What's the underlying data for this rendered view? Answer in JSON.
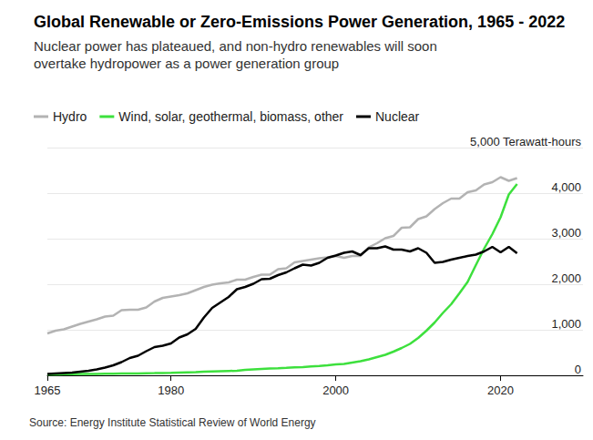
{
  "chart_data": {
    "type": "line",
    "title": "Global Renewable or Zero-Emissions Power Generation, 1965 - 2022",
    "subtitle": "Nuclear power has plateaued, and non-hydro renewables will soon overtake hydropower as a power generation group",
    "source": "Source: Energy Institute Statistical Review of World Energy",
    "x": [
      1965,
      1966,
      1967,
      1968,
      1969,
      1970,
      1971,
      1972,
      1973,
      1974,
      1975,
      1976,
      1977,
      1978,
      1979,
      1980,
      1981,
      1982,
      1983,
      1984,
      1985,
      1986,
      1987,
      1988,
      1989,
      1990,
      1991,
      1992,
      1993,
      1994,
      1995,
      1996,
      1997,
      1998,
      1999,
      2000,
      2001,
      2002,
      2003,
      2004,
      2005,
      2006,
      2007,
      2008,
      2009,
      2010,
      2011,
      2012,
      2013,
      2014,
      2015,
      2016,
      2017,
      2018,
      2019,
      2020,
      2021,
      2022
    ],
    "series": [
      {
        "name": "Hydro",
        "color": "#b3b3b3",
        "values": [
          920,
          980,
          1010,
          1070,
          1130,
          1180,
          1230,
          1290,
          1310,
          1430,
          1440,
          1440,
          1490,
          1620,
          1700,
          1730,
          1760,
          1800,
          1870,
          1940,
          1990,
          2020,
          2040,
          2100,
          2100,
          2160,
          2210,
          2210,
          2330,
          2350,
          2480,
          2510,
          2540,
          2570,
          2590,
          2620,
          2580,
          2620,
          2620,
          2810,
          2900,
          3010,
          3060,
          3240,
          3250,
          3430,
          3490,
          3650,
          3780,
          3880,
          3880,
          4020,
          4060,
          4190,
          4240,
          4350,
          4270,
          4330
        ]
      },
      {
        "name": "Wind, solar, geothermal, biomass, other",
        "color": "#3de03d",
        "values": [
          20,
          22,
          24,
          26,
          28,
          30,
          32,
          34,
          36,
          38,
          40,
          42,
          45,
          48,
          52,
          55,
          60,
          65,
          70,
          78,
          85,
          90,
          95,
          100,
          120,
          130,
          140,
          150,
          155,
          165,
          175,
          180,
          195,
          205,
          220,
          240,
          250,
          280,
          310,
          350,
          400,
          450,
          520,
          600,
          690,
          820,
          980,
          1160,
          1370,
          1560,
          1800,
          2050,
          2420,
          2780,
          3100,
          3470,
          3970,
          4200
        ]
      },
      {
        "name": "Nuclear",
        "color": "#000000",
        "values": [
          30,
          40,
          50,
          60,
          80,
          100,
          130,
          170,
          220,
          290,
          380,
          430,
          530,
          620,
          650,
          700,
          830,
          900,
          1020,
          1270,
          1480,
          1600,
          1720,
          1890,
          1940,
          2010,
          2110,
          2120,
          2200,
          2260,
          2350,
          2430,
          2410,
          2470,
          2580,
          2630,
          2690,
          2720,
          2640,
          2790,
          2790,
          2830,
          2760,
          2760,
          2720,
          2790,
          2690,
          2470,
          2490,
          2540,
          2580,
          2620,
          2650,
          2720,
          2820,
          2700,
          2820,
          2680
        ]
      }
    ],
    "xlim": [
      1965,
      2030
    ],
    "xticks": [
      1965,
      1980,
      2000,
      2020
    ],
    "ylim": [
      0,
      5000
    ],
    "yticks": [
      0,
      {
        "value": 1000,
        "label": "1,000"
      },
      {
        "value": 2000,
        "label": "2,000"
      },
      {
        "value": 3000,
        "label": "3,000"
      },
      {
        "value": 4000,
        "label": "4,000"
      },
      {
        "value": 5000,
        "label": "5,000 Terawatt-hours"
      }
    ],
    "grid": true,
    "legend": "top-left"
  }
}
